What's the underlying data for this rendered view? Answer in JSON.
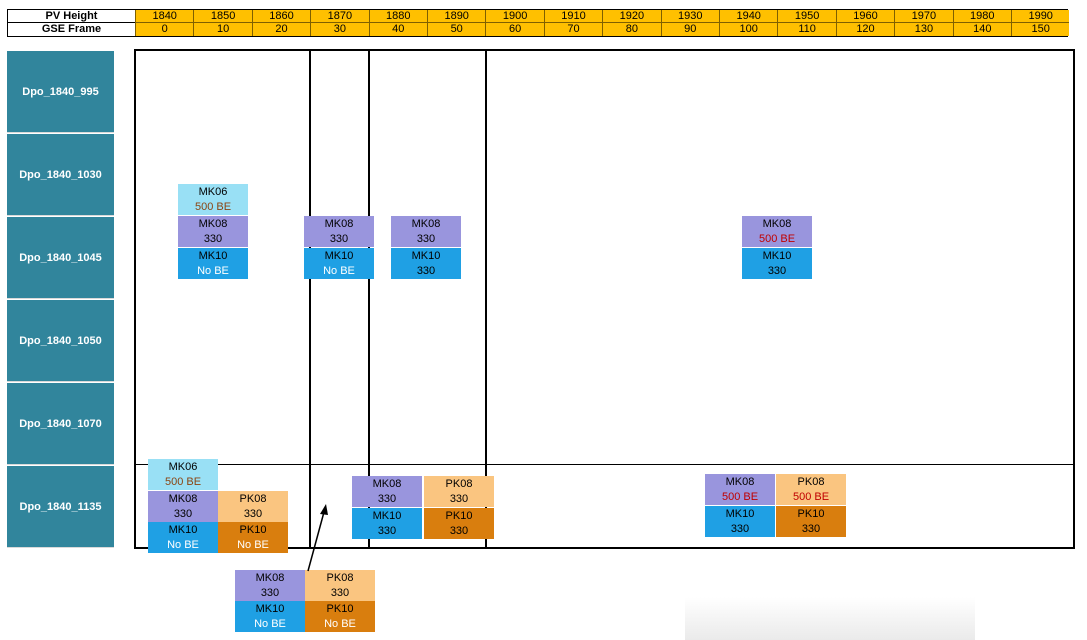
{
  "header": {
    "row1_label": "PV Height",
    "row2_label": "GSE Frame",
    "pv_heights": [
      "1840",
      "1850",
      "1860",
      "1870",
      "1880",
      "1890",
      "1900",
      "1910",
      "1920",
      "1930",
      "1940",
      "1950",
      "1960",
      "1970",
      "1980",
      "1990"
    ],
    "gse_frames": [
      "0",
      "10",
      "20",
      "30",
      "40",
      "50",
      "60",
      "70",
      "80",
      "90",
      "100",
      "110",
      "120",
      "130",
      "140",
      "150"
    ],
    "header_color": "#ffc000"
  },
  "rows": [
    "Dpo_1840_995",
    "Dpo_1840_1030",
    "Dpo_1840_1045",
    "Dpo_1840_1050",
    "Dpo_1840_1070",
    "Dpo_1840_1135"
  ],
  "colors": {
    "row_label_bg": "#31859c",
    "MK06": "#99e0f5",
    "MK08": "#9995dd",
    "MK10": "#1fa0e4",
    "PK08": "#fac580",
    "PK10": "#d97e0e",
    "be_red": "#c00000",
    "be_brown": "#8b4513"
  },
  "blocks": {
    "b1": {
      "mk06": {
        "name": "MK06",
        "value": "500 BE"
      },
      "mk08": {
        "name": "MK08",
        "value": "330"
      },
      "mk10": {
        "name": "MK10",
        "value": "No BE"
      }
    },
    "b2": {
      "mk08": {
        "name": "MK08",
        "value": "330"
      },
      "mk10": {
        "name": "MK10",
        "value": "No BE"
      }
    },
    "b3": {
      "mk08": {
        "name": "MK08",
        "value": "330"
      },
      "mk10": {
        "name": "MK10",
        "value": "330"
      }
    },
    "b4": {
      "mk08": {
        "name": "MK08",
        "value": "500 BE"
      },
      "mk10": {
        "name": "MK10",
        "value": "330"
      }
    },
    "b5": {
      "mk06": {
        "name": "MK06",
        "value": "500 BE"
      },
      "mk08": {
        "name": "MK08",
        "value": "330"
      },
      "mk10": {
        "name": "MK10",
        "value": "No BE"
      },
      "pk08": {
        "name": "PK08",
        "value": "330"
      },
      "pk10": {
        "name": "PK10",
        "value": "No BE"
      }
    },
    "b6": {
      "mk08": {
        "name": "MK08",
        "value": "330"
      },
      "mk10": {
        "name": "MK10",
        "value": "330"
      },
      "pk08": {
        "name": "PK08",
        "value": "330"
      },
      "pk10": {
        "name": "PK10",
        "value": "330"
      }
    },
    "b7": {
      "mk08": {
        "name": "MK08",
        "value": "500 BE"
      },
      "mk10": {
        "name": "MK10",
        "value": "330"
      },
      "pk08": {
        "name": "PK08",
        "value": "500 BE"
      },
      "pk10": {
        "name": "PK10",
        "value": "330"
      }
    },
    "b8": {
      "mk08": {
        "name": "MK08",
        "value": "330"
      },
      "mk10": {
        "name": "MK10",
        "value": "No BE"
      },
      "pk08": {
        "name": "PK08",
        "value": "330"
      },
      "pk10": {
        "name": "PK10",
        "value": "No BE"
      }
    }
  }
}
